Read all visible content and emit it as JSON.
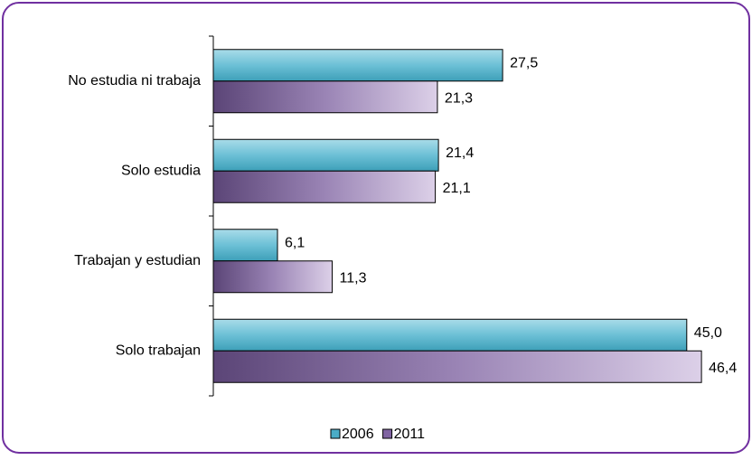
{
  "chart_data": {
    "type": "hbar",
    "categories": [
      "No estudia ni trabaja",
      "Solo estudia",
      "Trabajan y estudian",
      "Solo trabajan"
    ],
    "series": [
      {
        "name": "2006",
        "color": "#4bacc6",
        "values": [
          27.5,
          21.4,
          6.1,
          45.0
        ],
        "value_labels": [
          "27,5",
          "21,4",
          "6,1",
          "45,0"
        ]
      },
      {
        "name": "2011",
        "color": "#8064a2",
        "values": [
          21.3,
          21.1,
          11.3,
          46.4
        ],
        "value_labels": [
          "21,3",
          "21,1",
          "11,3",
          "46,4"
        ]
      }
    ],
    "xlim": [
      0,
      50
    ],
    "legend": "bottom"
  }
}
